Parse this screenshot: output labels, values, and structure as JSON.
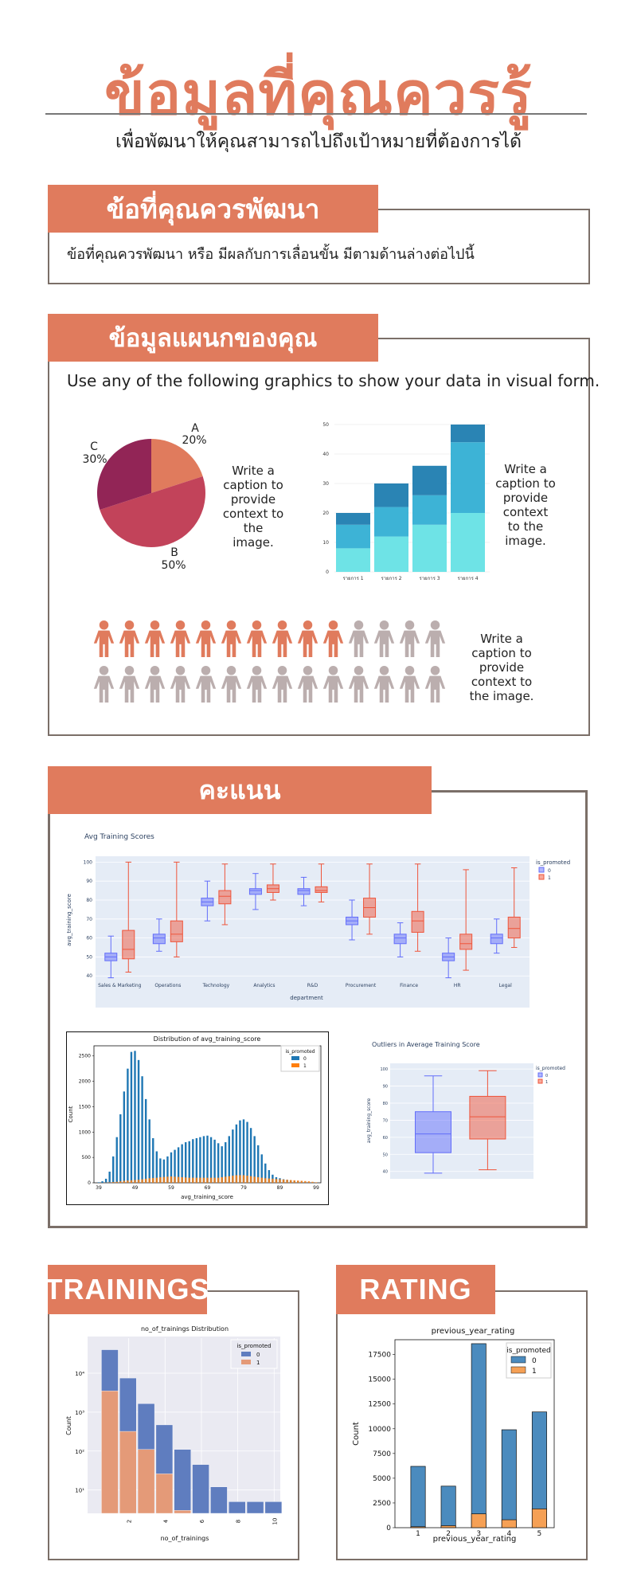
{
  "header": {
    "title": "ข้อมูลที่คุณควรรู้",
    "subtitle": "เพื่อพัฒนาให้คุณสามารถไปถึงเป้าหมายที่ต้องการได้"
  },
  "section1": {
    "heading": "ข้อที่คุณควรพัฒนา",
    "text": "ข้อที่คุณควรพัฒนา หรือ มีผลกับการเลื่อนขั้น มีตามด้านล่างต่อไปนี้"
  },
  "section2": {
    "heading": "ข้อมูลแผนกของคุณ",
    "intro": "Use any of the following graphics to show your data in visual form.",
    "caption1": "Write a caption to provide context to the image.",
    "caption2": "Write a caption to provide context to the image.",
    "caption3": "Write a caption to provide context to the image."
  },
  "section3": {
    "heading": "คะแนน"
  },
  "section4": {
    "heading": "TRAININGS"
  },
  "section5": {
    "heading": "RATING"
  },
  "colors": {
    "accent": "#e07b5d",
    "border": "#7b6f68",
    "plotly_blue": "#636efa",
    "plotly_red": "#ef553b",
    "mpl_blue": "#1f77b4",
    "mpl_orange": "#ff7f0e"
  },
  "chart_data": [
    {
      "id": "pie",
      "type": "pie",
      "categories": [
        "A",
        "B",
        "C"
      ],
      "values": [
        20,
        50,
        30
      ],
      "labels": [
        "A\n20%",
        "B\n50%",
        "C\n30%"
      ],
      "colors": [
        "#e07b5d",
        "#c2435a",
        "#922556"
      ]
    },
    {
      "id": "stacked",
      "type": "bar",
      "categories": [
        "รายการ 1",
        "รายการ 2",
        "รายการ 3",
        "รายการ 4"
      ],
      "ylim": [
        0,
        50
      ],
      "yticks": [
        0,
        10,
        20,
        30,
        40,
        50
      ],
      "series": [
        {
          "values": [
            8,
            12,
            16,
            20
          ],
          "color": "#6ee3e6"
        },
        {
          "values": [
            8,
            10,
            10,
            24
          ],
          "color": "#3db3d6"
        },
        {
          "values": [
            4,
            8,
            10,
            6
          ],
          "color": "#2a84b4"
        }
      ]
    },
    {
      "id": "pictogram",
      "type": "pictogram",
      "total": 28,
      "highlighted": 10,
      "colors": {
        "on": "#e07b5d",
        "off": "#bbaeae"
      }
    },
    {
      "id": "box_dept",
      "type": "box",
      "title": "Avg Training Scores",
      "xlabel": "department",
      "ylabel": "avg_training_score",
      "ylim": [
        38,
        101
      ],
      "yticks": [
        40,
        50,
        60,
        70,
        80,
        90,
        100
      ],
      "legend_title": "is_promoted",
      "series_names": [
        "0",
        "1"
      ],
      "categories": [
        "Sales & Marketing",
        "Operations",
        "Technology",
        "Analytics",
        "R&D",
        "Procurement",
        "Finance",
        "HR",
        "Legal"
      ],
      "boxes0": [
        [
          39,
          48,
          50,
          52,
          61
        ],
        [
          53,
          57,
          60,
          62,
          70
        ],
        [
          69,
          77,
          79,
          81,
          90
        ],
        [
          75,
          83,
          85,
          86,
          94
        ],
        [
          77,
          83,
          85,
          86,
          92
        ],
        [
          59,
          67,
          69,
          71,
          80
        ],
        [
          50,
          57,
          60,
          62,
          68
        ],
        [
          39,
          48,
          50,
          52,
          60
        ],
        [
          52,
          57,
          60,
          62,
          70
        ]
      ],
      "boxes1": [
        [
          42,
          49,
          54,
          64,
          100
        ],
        [
          50,
          58,
          62,
          69,
          100
        ],
        [
          67,
          78,
          82,
          85,
          99
        ],
        [
          80,
          84,
          86,
          88,
          99
        ],
        [
          79,
          84,
          85,
          87,
          99
        ],
        [
          62,
          71,
          76,
          81,
          99
        ],
        [
          53,
          63,
          69,
          74,
          99
        ],
        [
          43,
          54,
          57,
          62,
          96
        ],
        [
          55,
          60,
          65,
          71,
          97
        ]
      ]
    },
    {
      "id": "hist",
      "type": "bar",
      "title": "Distribution of avg_training_score",
      "xlabel": "avg_training_score",
      "ylabel": "Count",
      "ylim": [
        0,
        2700
      ],
      "yticks": [
        0,
        500,
        1000,
        1500,
        2000,
        2500
      ],
      "xticks": [
        39,
        49,
        59,
        69,
        79,
        89,
        99
      ],
      "legend_title": "is_promoted",
      "series_names": [
        "0",
        "1"
      ],
      "x": [
        39,
        40,
        41,
        42,
        43,
        44,
        45,
        46,
        47,
        48,
        49,
        50,
        51,
        52,
        53,
        54,
        55,
        56,
        57,
        58,
        59,
        60,
        61,
        62,
        63,
        64,
        65,
        66,
        67,
        68,
        69,
        70,
        71,
        72,
        73,
        74,
        75,
        76,
        77,
        78,
        79,
        80,
        81,
        82,
        83,
        84,
        85,
        86,
        87,
        88,
        89,
        90,
        91,
        92,
        93,
        94,
        95,
        96,
        97,
        98,
        99
      ],
      "values0": [
        10,
        30,
        80,
        220,
        520,
        900,
        1350,
        1800,
        2250,
        2580,
        2600,
        2420,
        2100,
        1650,
        1250,
        880,
        620,
        480,
        460,
        520,
        600,
        650,
        700,
        760,
        800,
        820,
        860,
        880,
        900,
        920,
        930,
        900,
        850,
        780,
        720,
        800,
        920,
        1050,
        1150,
        1230,
        1250,
        1200,
        1080,
        920,
        740,
        560,
        380,
        250,
        160,
        110,
        90,
        70,
        60,
        50,
        40,
        30,
        25,
        20,
        15,
        10,
        5
      ],
      "values1": [
        0,
        0,
        5,
        10,
        15,
        20,
        30,
        40,
        45,
        50,
        55,
        60,
        70,
        80,
        90,
        95,
        100,
        110,
        115,
        120,
        125,
        120,
        115,
        110,
        105,
        100,
        100,
        100,
        100,
        100,
        100,
        100,
        100,
        100,
        110,
        120,
        130,
        140,
        150,
        150,
        150,
        140,
        130,
        120,
        110,
        100,
        90,
        85,
        80,
        75,
        70,
        65,
        60,
        55,
        50,
        45,
        40,
        35,
        30,
        20,
        10
      ]
    },
    {
      "id": "box_outliers",
      "type": "box",
      "title": "Outliers in Average Training Score",
      "ylabel": "avg_training_score",
      "ylim": [
        38,
        101
      ],
      "yticks": [
        40,
        50,
        60,
        70,
        80,
        90,
        100
      ],
      "legend_title": "is_promoted",
      "series_names": [
        "0",
        "1"
      ],
      "boxes0": [
        [
          39,
          51,
          62,
          75,
          96
        ]
      ],
      "boxes1": [
        [
          41,
          59,
          72,
          84,
          99
        ]
      ]
    },
    {
      "id": "trainings",
      "type": "bar",
      "title": "no_of_trainings Distribution",
      "xlabel": "no_of_trainings",
      "ylabel": "Count",
      "scale": "log",
      "xticks": [
        2,
        4,
        6,
        8,
        10
      ],
      "yticklabels": [
        "10¹",
        "10²",
        "10³",
        "10⁴"
      ],
      "legend_title": "is_promoted",
      "series_names": [
        "0",
        "1"
      ],
      "x": [
        1,
        2,
        3,
        4,
        5,
        6,
        7,
        8,
        9,
        10
      ],
      "values0": [
        40000,
        7500,
        1650,
        470,
        110,
        45,
        12,
        5,
        5,
        5
      ],
      "values1": [
        3500,
        320,
        110,
        26,
        3,
        2,
        0,
        0,
        0,
        0
      ]
    },
    {
      "id": "rating",
      "type": "bar",
      "title": "previous_year_rating",
      "xlabel": "previous_year_rating",
      "ylabel": "Count",
      "ylim": [
        0,
        19000
      ],
      "yticks": [
        0,
        2500,
        5000,
        7500,
        10000,
        12500,
        15000,
        17500
      ],
      "categories": [
        "1",
        "2",
        "3",
        "4",
        "5"
      ],
      "legend_title": "is_promoted",
      "series_names": [
        "0",
        "1"
      ],
      "values0": [
        6200,
        4200,
        18600,
        9900,
        11700
      ],
      "values1": [
        100,
        200,
        1400,
        800,
        1900
      ]
    }
  ]
}
